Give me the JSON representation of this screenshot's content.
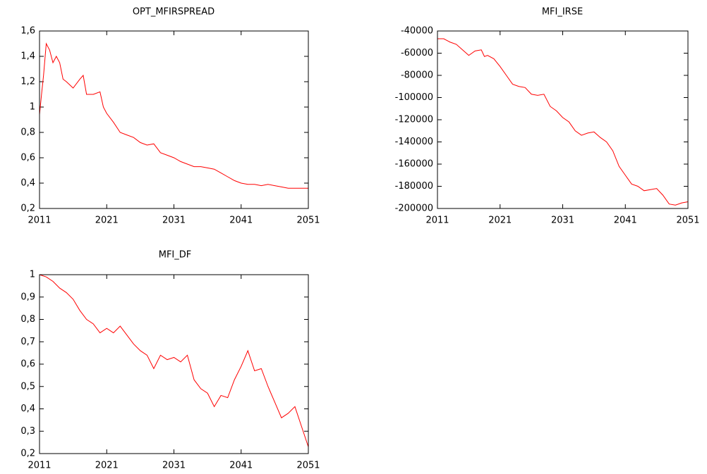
{
  "chart_data": [
    {
      "type": "line",
      "title": "OPT_MFIRSPREAD",
      "x": [
        2011,
        2011.3,
        2011.6,
        2012,
        2012.5,
        2013,
        2013.5,
        2014,
        2014.5,
        2015,
        2016,
        2017,
        2017.5,
        2018,
        2019,
        2020,
        2020.5,
        2021,
        2022,
        2023,
        2024,
        2025,
        2026,
        2027,
        2028,
        2029,
        2030,
        2031,
        2032,
        2033,
        2034,
        2035,
        2036,
        2037,
        2038,
        2039,
        2040,
        2041,
        2042,
        2043,
        2044,
        2045,
        2046,
        2047,
        2048,
        2049,
        2050,
        2051
      ],
      "series": [
        {
          "name": "OPT_MFIRSPREAD",
          "color": "#ff0000",
          "values": [
            0.94,
            1.1,
            1.25,
            1.5,
            1.45,
            1.35,
            1.4,
            1.35,
            1.22,
            1.2,
            1.15,
            1.22,
            1.25,
            1.1,
            1.1,
            1.12,
            1.0,
            0.95,
            0.88,
            0.8,
            0.78,
            0.76,
            0.72,
            0.7,
            0.71,
            0.64,
            0.62,
            0.6,
            0.57,
            0.55,
            0.53,
            0.53,
            0.52,
            0.51,
            0.48,
            0.45,
            0.42,
            0.4,
            0.39,
            0.39,
            0.38,
            0.39,
            0.38,
            0.37,
            0.36,
            0.36,
            0.36,
            0.36
          ]
        }
      ],
      "xlim": [
        2011,
        2051
      ],
      "xticks": [
        2011,
        2021,
        2031,
        2041,
        2051
      ],
      "ylim": [
        0.2,
        1.6
      ],
      "yticks": [
        {
          "value": 0.2,
          "label": "0,2"
        },
        {
          "value": 0.4,
          "label": "0,4"
        },
        {
          "value": 0.6,
          "label": "0,6"
        },
        {
          "value": 0.8,
          "label": "0,8"
        },
        1,
        {
          "value": 1.2,
          "label": "1,2"
        },
        {
          "value": 1.4,
          "label": "1,4"
        },
        {
          "value": 1.6,
          "label": "1,6"
        }
      ]
    },
    {
      "type": "line",
      "title": "MFI_IRSE",
      "x": [
        2011,
        2012,
        2013,
        2014,
        2015,
        2016,
        2017,
        2018,
        2018.5,
        2019,
        2020,
        2021,
        2022,
        2023,
        2024,
        2025,
        2026,
        2027,
        2028,
        2029,
        2030,
        2031,
        2032,
        2033,
        2034,
        2035,
        2036,
        2037,
        2038,
        2039,
        2040,
        2041,
        2042,
        2043,
        2044,
        2045,
        2046,
        2047,
        2048,
        2049,
        2050,
        2051
      ],
      "series": [
        {
          "name": "MFI_IRSE",
          "color": "#ff0000",
          "values": [
            -47000,
            -47000,
            -50000,
            -52000,
            -57000,
            -62000,
            -58000,
            -57000,
            -63000,
            -62000,
            -65000,
            -72000,
            -80000,
            -88000,
            -90000,
            -91000,
            -97000,
            -98000,
            -97000,
            -108000,
            -112000,
            -118000,
            -122000,
            -130000,
            -134000,
            -132000,
            -131000,
            -136000,
            -140000,
            -148000,
            -162000,
            -170000,
            -178000,
            -180000,
            -184000,
            -183000,
            -182000,
            -188000,
            -196000,
            -197000,
            -195000,
            -194000
          ]
        }
      ],
      "xlim": [
        2011,
        2051
      ],
      "xticks": [
        2011,
        2021,
        2031,
        2041,
        2051
      ],
      "ylim": [
        -200000,
        -40000
      ],
      "yticks": [
        -200000,
        -180000,
        -160000,
        -140000,
        -120000,
        -100000,
        -80000,
        -60000,
        -40000
      ]
    },
    {
      "type": "line",
      "title": "MFI_DF",
      "x": [
        2011,
        2012,
        2013,
        2014,
        2015,
        2016,
        2017,
        2018,
        2019,
        2020,
        2021,
        2022,
        2023,
        2024,
        2025,
        2026,
        2027,
        2028,
        2029,
        2030,
        2031,
        2032,
        2033,
        2034,
        2035,
        2036,
        2037,
        2038,
        2039,
        2040,
        2041,
        2042,
        2043,
        2044,
        2045,
        2046,
        2047,
        2048,
        2049,
        2050,
        2051
      ],
      "series": [
        {
          "name": "MFI_DF",
          "color": "#ff0000",
          "values": [
            1.0,
            0.99,
            0.97,
            0.94,
            0.92,
            0.89,
            0.84,
            0.8,
            0.78,
            0.74,
            0.76,
            0.74,
            0.77,
            0.73,
            0.69,
            0.66,
            0.64,
            0.58,
            0.64,
            0.62,
            0.63,
            0.61,
            0.64,
            0.53,
            0.49,
            0.47,
            0.41,
            0.46,
            0.45,
            0.53,
            0.59,
            0.66,
            0.57,
            0.58,
            0.5,
            0.43,
            0.36,
            0.38,
            0.41,
            0.32,
            0.23
          ]
        }
      ],
      "xlim": [
        2011,
        2051
      ],
      "xticks": [
        2011,
        2021,
        2031,
        2041,
        2051
      ],
      "ylim": [
        0.2,
        1
      ],
      "yticks": [
        {
          "value": 0.2,
          "label": "0,2"
        },
        {
          "value": 0.3,
          "label": "0,3"
        },
        {
          "value": 0.4,
          "label": "0,4"
        },
        {
          "value": 0.5,
          "label": "0,5"
        },
        {
          "value": 0.6,
          "label": "0,6"
        },
        {
          "value": 0.7,
          "label": "0,7"
        },
        {
          "value": 0.8,
          "label": "0,8"
        },
        {
          "value": 0.9,
          "label": "0,9"
        },
        1
      ]
    }
  ]
}
